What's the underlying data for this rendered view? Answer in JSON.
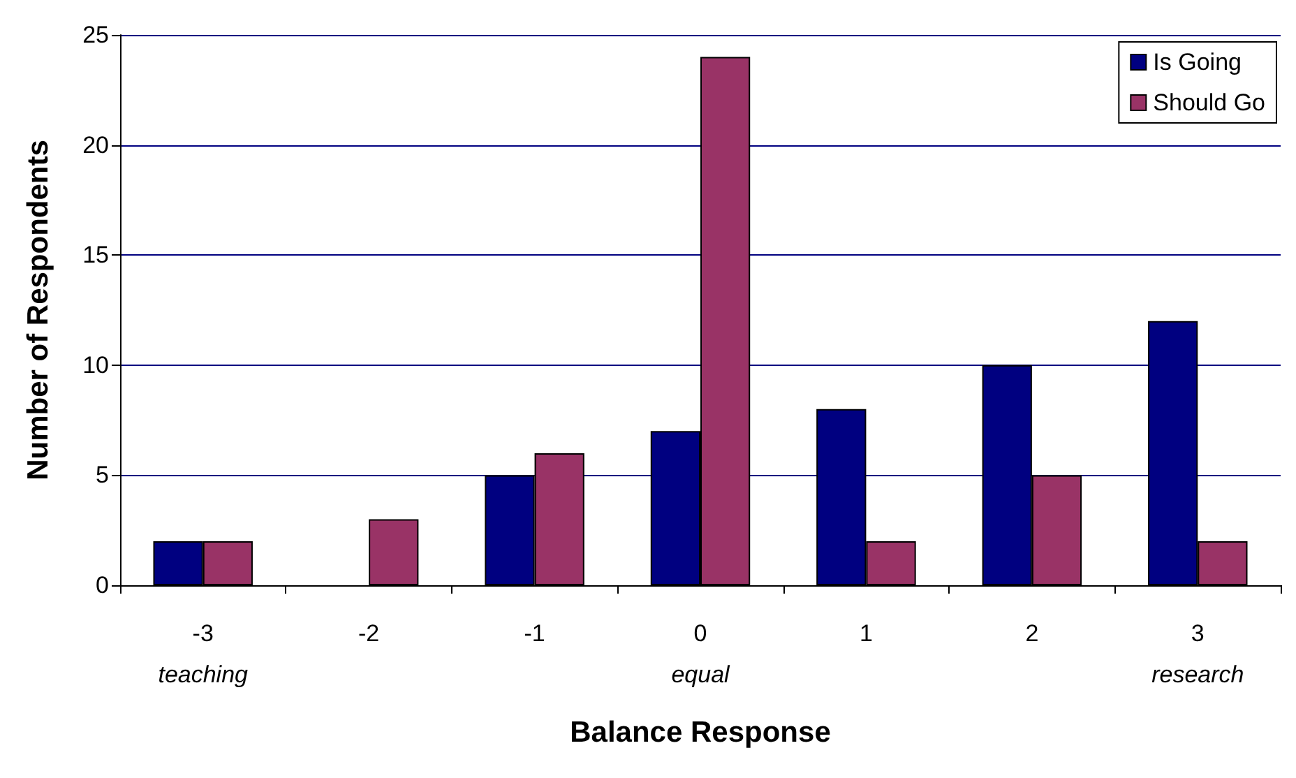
{
  "chart_data": {
    "type": "bar",
    "xlabel": "Balance Response",
    "ylabel": "Number of Respondents",
    "categories": [
      "-3",
      "-2",
      "-1",
      "0",
      "1",
      "2",
      "3"
    ],
    "series": [
      {
        "name": "Is Going",
        "color": "#000080",
        "values": [
          2,
          0,
          5,
          7,
          8,
          10,
          12
        ]
      },
      {
        "name": "Should Go",
        "color": "#993366",
        "values": [
          2,
          3,
          6,
          24,
          2,
          5,
          2
        ]
      }
    ],
    "ylim": [
      0,
      25
    ],
    "yticks": [
      0,
      5,
      10,
      15,
      20,
      25
    ],
    "grid": "y",
    "legend": "top right",
    "annotations": [
      "teaching",
      "equal",
      "research"
    ]
  }
}
